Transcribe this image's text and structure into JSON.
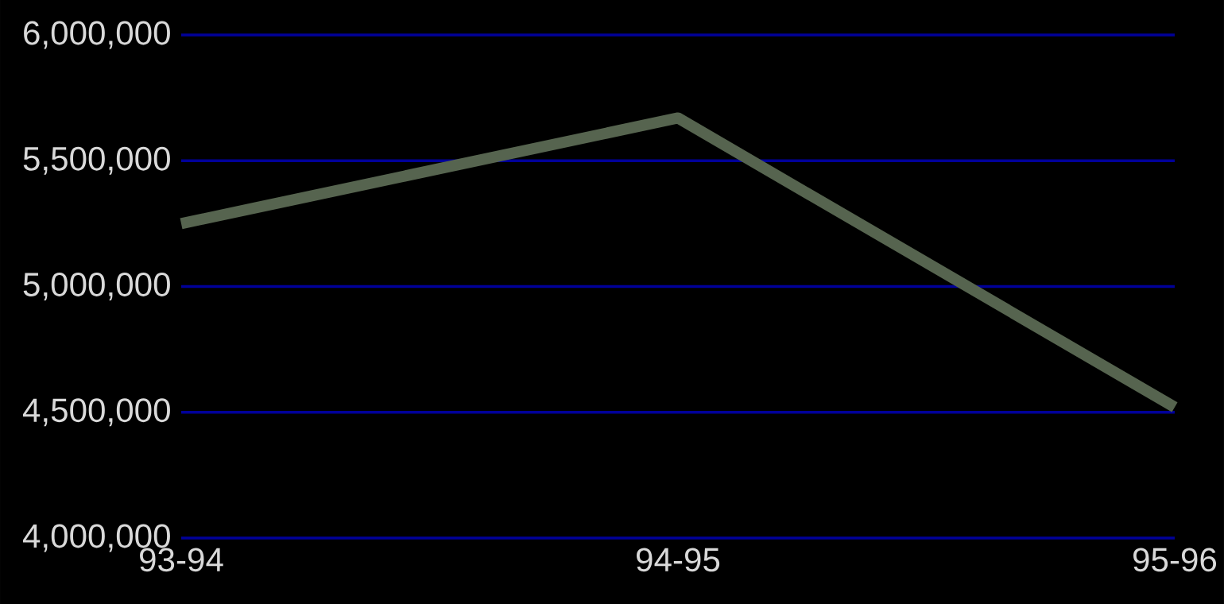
{
  "chart_data": {
    "type": "line",
    "categories": [
      "93-94",
      "94-95",
      "95-96"
    ],
    "series": [
      {
        "color": "#56644f",
        "values": [
          5250000,
          5670000,
          4520000
        ]
      }
    ],
    "ylim": [
      4000000,
      6000000
    ],
    "yticks": [
      {
        "value": 4000000,
        "label": "4,000,000"
      },
      {
        "value": 4500000,
        "label": "4,500,000"
      },
      {
        "value": 5000000,
        "label": "5,000,000"
      },
      {
        "value": 5500000,
        "label": "5,500,000"
      },
      {
        "value": 6000000,
        "label": "6,000,000"
      }
    ],
    "grid": "y",
    "marker": "none",
    "line_style": "solid"
  }
}
